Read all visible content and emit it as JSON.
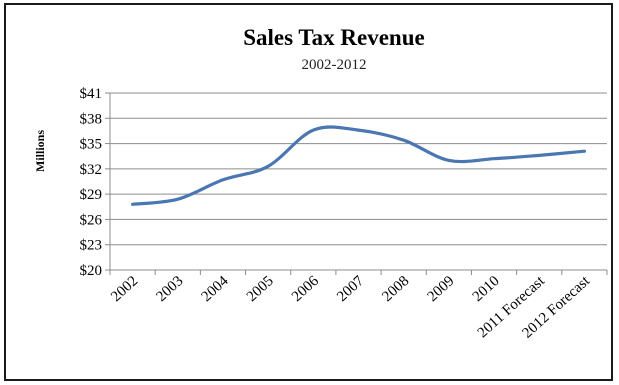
{
  "chart_data": {
    "type": "line",
    "title": "Sales Tax Revenue",
    "subtitle": "2002-2012",
    "ylabel": "Millions",
    "xlabel": "",
    "categories": [
      "2002",
      "2003",
      "2004",
      "2005",
      "2006",
      "2007",
      "2008",
      "2009",
      "2010",
      "2011 Forecast",
      "2012 Forecast"
    ],
    "y_tick_labels": [
      "$41",
      "$38",
      "$35",
      "$32",
      "$29",
      "$26",
      "$23",
      "$20"
    ],
    "ylim": [
      20,
      41
    ],
    "y_ticks": [
      20,
      23,
      26,
      29,
      32,
      35,
      38,
      41
    ],
    "grid": true,
    "legend": "none",
    "series": [
      {
        "values": [
          27.8,
          28.4,
          30.7,
          32.3,
          36.6,
          36.6,
          35.4,
          33.0,
          33.2,
          33.6,
          34.1
        ],
        "color": "#4a76b1"
      }
    ]
  }
}
